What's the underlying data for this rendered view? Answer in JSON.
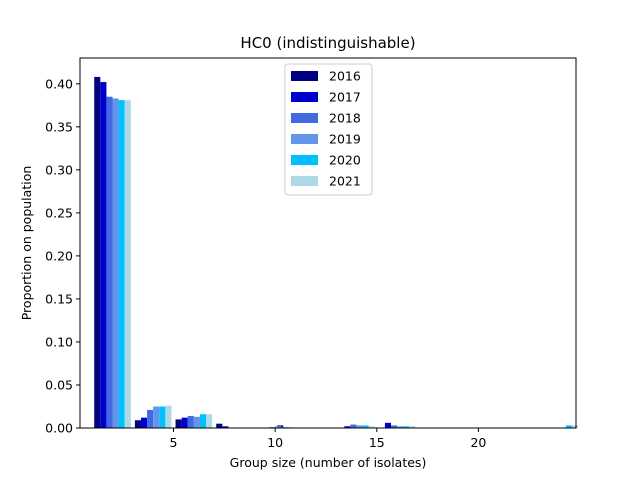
{
  "chart_data": {
    "type": "bar",
    "title": "HC0 (indistinguishable)",
    "xlabel": "Group size (number of isolates)",
    "ylabel": "Proportion on population",
    "xlim": [
      0.4,
      24.8
    ],
    "ylim": [
      0,
      0.43
    ],
    "xticks": [
      5,
      10,
      15,
      20
    ],
    "yticks": [
      0.0,
      0.05,
      0.1,
      0.15,
      0.2,
      0.25,
      0.3,
      0.35,
      0.4
    ],
    "ytick_labels": [
      "0.00",
      "0.05",
      "0.10",
      "0.15",
      "0.20",
      "0.25",
      "0.30",
      "0.35",
      "0.40"
    ],
    "grid": false,
    "legend_position": "top-center",
    "group_width": 1.8,
    "series": [
      {
        "name": "2016",
        "color": "#000080",
        "points": [
          [
            2,
            0.408
          ],
          [
            4,
            0.009
          ],
          [
            6,
            0.01
          ],
          [
            8,
            0.005
          ],
          [
            10,
            0.0
          ],
          [
            11,
            0.003
          ],
          [
            14,
            0.0
          ],
          [
            16,
            0.0
          ],
          [
            24,
            0.0
          ]
        ]
      },
      {
        "name": "2017",
        "color": "#0000CD",
        "points": [
          [
            2,
            0.402
          ],
          [
            4,
            0.012
          ],
          [
            6,
            0.012
          ],
          [
            8,
            0.002
          ],
          [
            10,
            0.0
          ],
          [
            11,
            0.0
          ],
          [
            14,
            0.002
          ],
          [
            16,
            0.006
          ],
          [
            24,
            0.0
          ]
        ]
      },
      {
        "name": "2018",
        "color": "#4169E1",
        "points": [
          [
            2,
            0.385
          ],
          [
            4,
            0.021
          ],
          [
            6,
            0.014
          ],
          [
            8,
            0.0
          ],
          [
            10,
            0.001
          ],
          [
            11,
            0.0
          ],
          [
            14,
            0.004
          ],
          [
            16,
            0.003
          ],
          [
            24,
            0.0
          ]
        ]
      },
      {
        "name": "2019",
        "color": "#6495ED",
        "points": [
          [
            2,
            0.383
          ],
          [
            4,
            0.025
          ],
          [
            6,
            0.013
          ],
          [
            8,
            0.0
          ],
          [
            10,
            0.002
          ],
          [
            11,
            0.0
          ],
          [
            14,
            0.003
          ],
          [
            16,
            0.002
          ],
          [
            24,
            0.0
          ]
        ]
      },
      {
        "name": "2020",
        "color": "#00BFFF",
        "points": [
          [
            2,
            0.381
          ],
          [
            4,
            0.025
          ],
          [
            6,
            0.016
          ],
          [
            8,
            0.0
          ],
          [
            10,
            0.001
          ],
          [
            11,
            0.0
          ],
          [
            14,
            0.003
          ],
          [
            16,
            0.002
          ],
          [
            24,
            0.003
          ]
        ]
      },
      {
        "name": "2021",
        "color": "#ADD8E6",
        "points": [
          [
            2,
            0.381
          ],
          [
            4,
            0.026
          ],
          [
            6,
            0.016
          ],
          [
            8,
            0.0
          ],
          [
            10,
            0.001
          ],
          [
            11,
            0.0
          ],
          [
            14,
            0.002
          ],
          [
            16,
            0.002
          ],
          [
            24,
            0.003
          ]
        ]
      }
    ]
  }
}
